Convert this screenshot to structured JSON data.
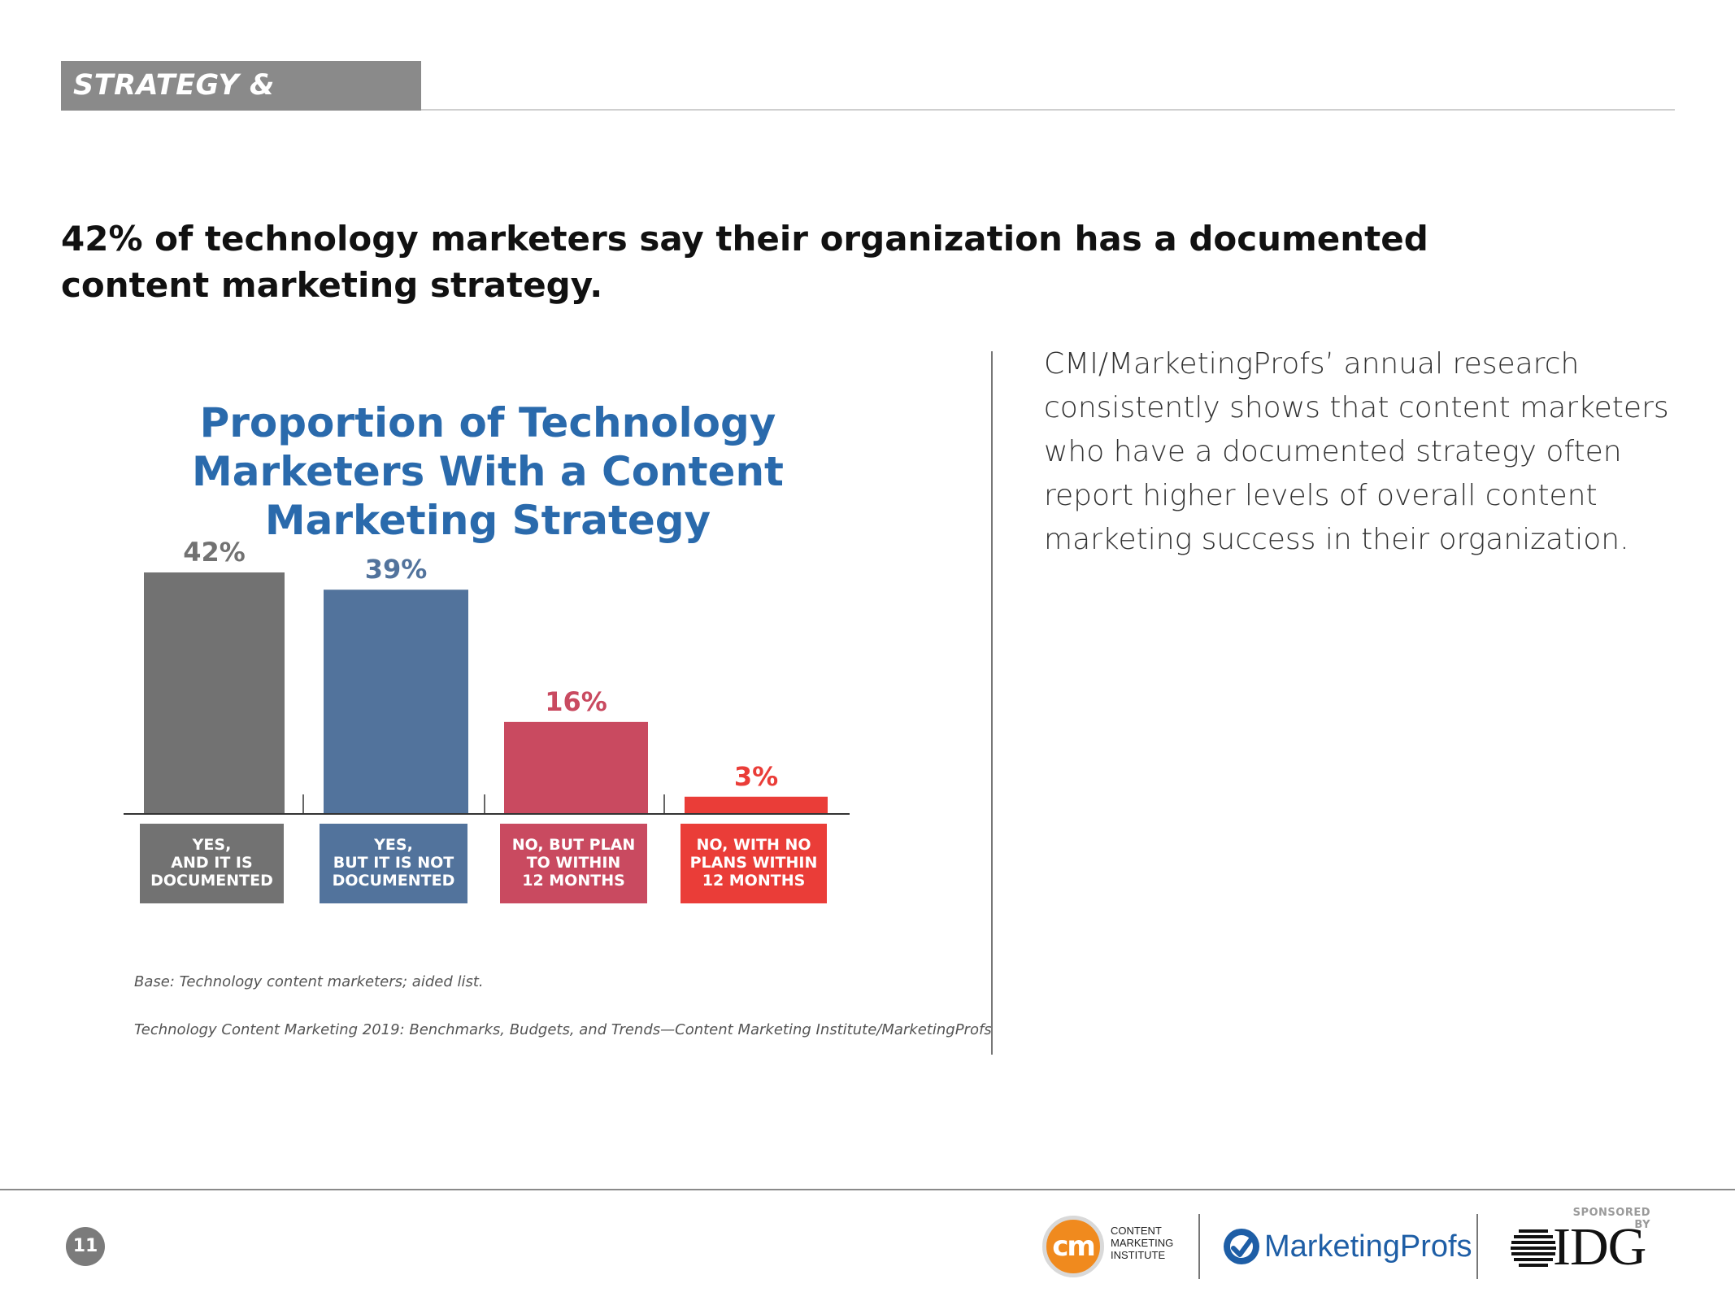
{
  "section": {
    "label": "STRATEGY & OPINIONS"
  },
  "headline": "42% of technology marketers say their organization has a documented content marketing strategy.",
  "chart_data": {
    "type": "bar",
    "title": "Proportion of Technology Marketers With a Content Marketing Strategy",
    "categories": [
      [
        "YES,",
        "AND IT IS",
        "DOCUMENTED"
      ],
      [
        "YES,",
        "BUT IT IS NOT",
        "DOCUMENTED"
      ],
      [
        "NO, BUT PLAN",
        "TO WITHIN",
        "12 MONTHS"
      ],
      [
        "NO, WITH NO",
        "PLANS WITHIN",
        "12 MONTHS"
      ]
    ],
    "values": [
      42,
      39,
      16,
      3
    ],
    "value_labels": [
      "42%",
      "39%",
      "16%",
      "3%"
    ],
    "colors": [
      "#727272",
      "#52739c",
      "#c94a60",
      "#ea3d38"
    ],
    "label_colors": [
      "#727272",
      "#52739c",
      "#c94a60",
      "#ea3d38"
    ],
    "ylim": [
      0,
      42
    ],
    "grid": false,
    "legend": "none"
  },
  "footnotes": {
    "base": "Base: Technology content marketers; aided list.",
    "source": "Technology Content Marketing 2019: Benchmarks, Budgets, and Trends—Content Marketing Institute/MarketingProfs"
  },
  "body_text": "CMI/MarketingProfs’ annual research consistently shows that content marketers who have a documented strategy often report higher levels of overall content marketing success in their organization.",
  "footer": {
    "page_number": "11",
    "cmi_badge": "cm",
    "cmi_line1": "CONTENT",
    "cmi_line2": "MARKETING",
    "cmi_line3": "INSTITUTE",
    "mp_name": "MarketingProfs",
    "sponsored_by": "SPONSORED BY",
    "idg_name": "IDG"
  },
  "colors": {
    "title_blue": "#2a6aac",
    "tab_gray": "#8a8a8a",
    "cmi_orange": "#f08a1e",
    "mp_blue": "#1e5ea6"
  }
}
